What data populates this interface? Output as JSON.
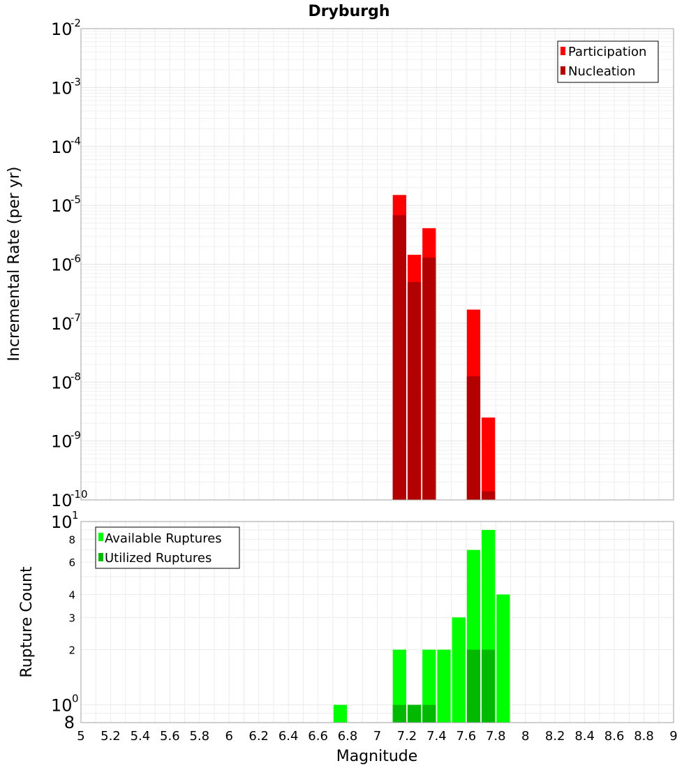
{
  "title": "Dryburgh",
  "xlabel": "Magnitude",
  "x_ticks": [
    "5",
    "5.2",
    "5.4",
    "5.6",
    "5.8",
    "6",
    "6.2",
    "6.4",
    "6.6",
    "6.8",
    "7",
    "7.2",
    "7.4",
    "7.6",
    "7.8",
    "8",
    "8.2",
    "8.4",
    "8.6",
    "8.8",
    "9"
  ],
  "chart_data": [
    {
      "type": "bar",
      "title": "Dryburgh",
      "xlabel": "Magnitude",
      "ylabel": "Incremental Rate (per yr)",
      "xlim": [
        5,
        9
      ],
      "ylim": [
        1e-10,
        0.01
      ],
      "y_scale": "log",
      "bar_width": 0.1,
      "grid": true,
      "legend_position": "top-right",
      "y_tick_labels": [
        {
          "base": "10",
          "exp": "-2"
        },
        {
          "base": "10",
          "exp": "-3"
        },
        {
          "base": "10",
          "exp": "-4"
        },
        {
          "base": "10",
          "exp": "-5"
        },
        {
          "base": "10",
          "exp": "-6"
        },
        {
          "base": "10",
          "exp": "-7"
        },
        {
          "base": "10",
          "exp": "-8"
        },
        {
          "base": "10",
          "exp": "-9"
        },
        {
          "base": "10",
          "exp": "-10"
        }
      ],
      "series": [
        {
          "name": "Participation",
          "color": "#ff0000",
          "x": [
            7.15,
            7.25,
            7.35,
            7.65,
            7.75
          ],
          "values": [
            1.5e-05,
            1.45e-06,
            4.1e-06,
            1.7e-07,
            2.5e-09
          ]
        },
        {
          "name": "Nucleation",
          "color": "#b30000",
          "x": [
            7.15,
            7.25,
            7.35,
            7.65,
            7.75
          ],
          "values": [
            6.8e-06,
            5e-07,
            1.3e-06,
            1.25e-08,
            1.4e-10
          ]
        }
      ]
    },
    {
      "type": "bar",
      "xlabel": "Magnitude",
      "ylabel": "Rupture Count",
      "xlim": [
        5,
        9
      ],
      "ylim": [
        0.8,
        10
      ],
      "y_scale": "log",
      "bar_width": 0.1,
      "grid": true,
      "legend_position": "top-left",
      "y_tick_labels": [
        {
          "value": 10,
          "base": "10",
          "exp": "1"
        },
        {
          "value": 8,
          "label": "8"
        },
        {
          "value": 6,
          "label": "6"
        },
        {
          "value": 4,
          "label": "4"
        },
        {
          "value": 3,
          "label": "3"
        },
        {
          "value": 2,
          "label": "2"
        },
        {
          "value": 1,
          "base": "10",
          "exp": "0"
        },
        {
          "value": 0.8,
          "label": "8"
        }
      ],
      "series": [
        {
          "name": "Available Ruptures",
          "color": "#00ff00",
          "x": [
            6.75,
            7.15,
            7.25,
            7.35,
            7.45,
            7.55,
            7.65,
            7.75,
            7.85
          ],
          "values": [
            1,
            2,
            1,
            2,
            2,
            3,
            7,
            9,
            4
          ]
        },
        {
          "name": "Utilized Ruptures",
          "color": "#00b900",
          "x": [
            7.15,
            7.25,
            7.35,
            7.65,
            7.75
          ],
          "values": [
            1,
            1,
            1,
            2,
            2
          ]
        }
      ]
    }
  ]
}
